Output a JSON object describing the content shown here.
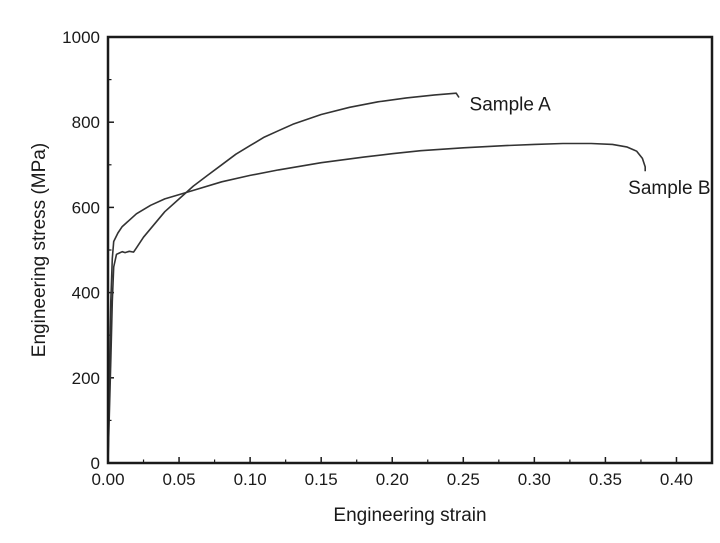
{
  "chart_data": {
    "type": "line",
    "xlabel": "Engineering strain",
    "ylabel": "Engineering stress (MPa)",
    "xlim": [
      0,
      0.425
    ],
    "ylim": [
      0,
      1000
    ],
    "x_ticks": [
      "0.00",
      "0.05",
      "0.10",
      "0.15",
      "0.20",
      "0.25",
      "0.30",
      "0.35",
      "0.40"
    ],
    "y_ticks": [
      "0",
      "200",
      "400",
      "600",
      "800",
      "1000"
    ],
    "grid": false,
    "series": [
      {
        "name": "Sample A",
        "color": "#333333",
        "points": [
          [
            0.0,
            0
          ],
          [
            0.002,
            240
          ],
          [
            0.003,
            380
          ],
          [
            0.004,
            460
          ],
          [
            0.006,
            490
          ],
          [
            0.008,
            493
          ],
          [
            0.01,
            496
          ],
          [
            0.012,
            494
          ],
          [
            0.015,
            497
          ],
          [
            0.018,
            495
          ],
          [
            0.02,
            505
          ],
          [
            0.025,
            530
          ],
          [
            0.03,
            550
          ],
          [
            0.04,
            590
          ],
          [
            0.05,
            620
          ],
          [
            0.06,
            650
          ],
          [
            0.07,
            675
          ],
          [
            0.08,
            700
          ],
          [
            0.09,
            725
          ],
          [
            0.1,
            745
          ],
          [
            0.11,
            765
          ],
          [
            0.12,
            780
          ],
          [
            0.13,
            795
          ],
          [
            0.15,
            818
          ],
          [
            0.17,
            835
          ],
          [
            0.19,
            848
          ],
          [
            0.21,
            857
          ],
          [
            0.23,
            864
          ],
          [
            0.245,
            868
          ],
          [
            0.247,
            858
          ]
        ]
      },
      {
        "name": "Sample B",
        "color": "#333333",
        "points": [
          [
            0.0,
            0
          ],
          [
            0.001,
            200
          ],
          [
            0.002,
            380
          ],
          [
            0.003,
            480
          ],
          [
            0.004,
            520
          ],
          [
            0.007,
            540
          ],
          [
            0.01,
            555
          ],
          [
            0.02,
            585
          ],
          [
            0.03,
            605
          ],
          [
            0.04,
            620
          ],
          [
            0.05,
            630
          ],
          [
            0.06,
            640
          ],
          [
            0.08,
            660
          ],
          [
            0.1,
            675
          ],
          [
            0.12,
            688
          ],
          [
            0.15,
            705
          ],
          [
            0.18,
            718
          ],
          [
            0.2,
            726
          ],
          [
            0.22,
            733
          ],
          [
            0.25,
            740
          ],
          [
            0.28,
            745
          ],
          [
            0.3,
            748
          ],
          [
            0.32,
            750
          ],
          [
            0.34,
            750
          ],
          [
            0.355,
            748
          ],
          [
            0.365,
            742
          ],
          [
            0.372,
            732
          ],
          [
            0.376,
            715
          ],
          [
            0.378,
            695
          ],
          [
            0.378,
            685
          ]
        ]
      }
    ],
    "annotations": [
      {
        "text": "Sample A",
        "x": 0.283,
        "y": 828
      },
      {
        "text": "Sample B",
        "x": 0.395,
        "y": 632
      }
    ]
  }
}
